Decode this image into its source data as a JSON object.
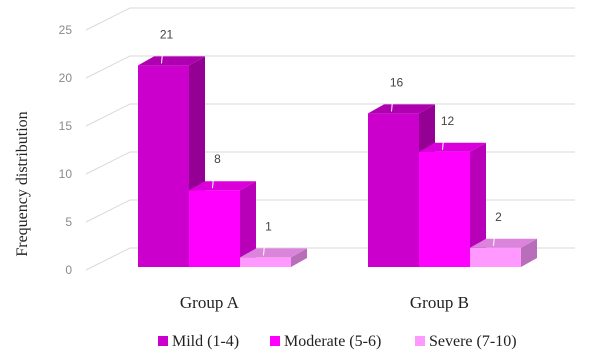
{
  "chart_data": {
    "type": "bar",
    "title": "",
    "xlabel": "",
    "ylabel": "Frequency distribution",
    "ylim": [
      0,
      25
    ],
    "yticks": [
      0,
      5,
      10,
      15,
      20,
      25
    ],
    "categories": [
      "Group A",
      "Group B"
    ],
    "series": [
      {
        "name": "Mild (1-4)",
        "values": [
          21,
          16
        ],
        "color": "#cc00cc"
      },
      {
        "name": "Moderate (5-6)",
        "values": [
          8,
          12
        ],
        "color": "#ff00ff"
      },
      {
        "name": "Severe (7-10)",
        "values": [
          1,
          2
        ],
        "color": "#ff99ff"
      }
    ],
    "style": "3d-clustered-column",
    "grid": true,
    "legend_position": "bottom",
    "data_labels": true
  }
}
